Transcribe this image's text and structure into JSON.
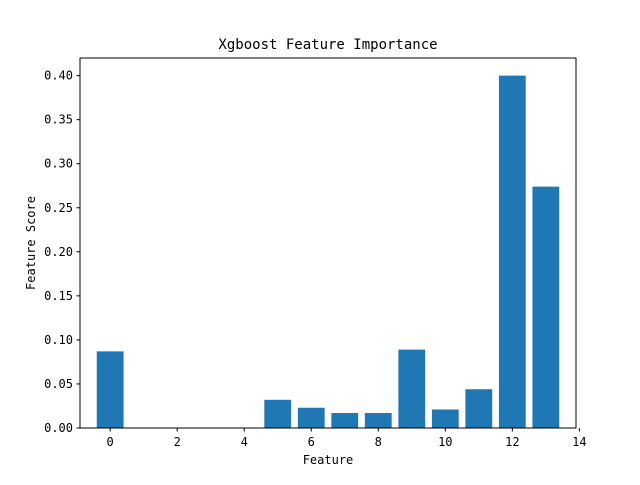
{
  "chart_data": {
    "type": "bar",
    "title": "Xgboost Feature Importance",
    "xlabel": "Feature",
    "ylabel": "Feature Score",
    "x": [
      0,
      1,
      2,
      3,
      4,
      5,
      6,
      7,
      8,
      9,
      10,
      11,
      12,
      13
    ],
    "values": [
      0.087,
      0,
      0,
      0,
      0,
      0.032,
      0.023,
      0.017,
      0.017,
      0.089,
      0.021,
      0.044,
      0.4,
      0.274
    ],
    "xlim": [
      -0.9,
      13.9
    ],
    "ylim": [
      0,
      0.42
    ],
    "xticks": [
      0,
      2,
      4,
      6,
      8,
      10,
      12,
      14
    ],
    "yticks": [
      0.0,
      0.05,
      0.1,
      0.15,
      0.2,
      0.25,
      0.3,
      0.35,
      0.4
    ],
    "ytick_labels": [
      "0.00",
      "0.05",
      "0.10",
      "0.15",
      "0.20",
      "0.25",
      "0.30",
      "0.35",
      "0.40"
    ],
    "bar_color": "#1f77b4",
    "grid": false,
    "legend": "none"
  }
}
